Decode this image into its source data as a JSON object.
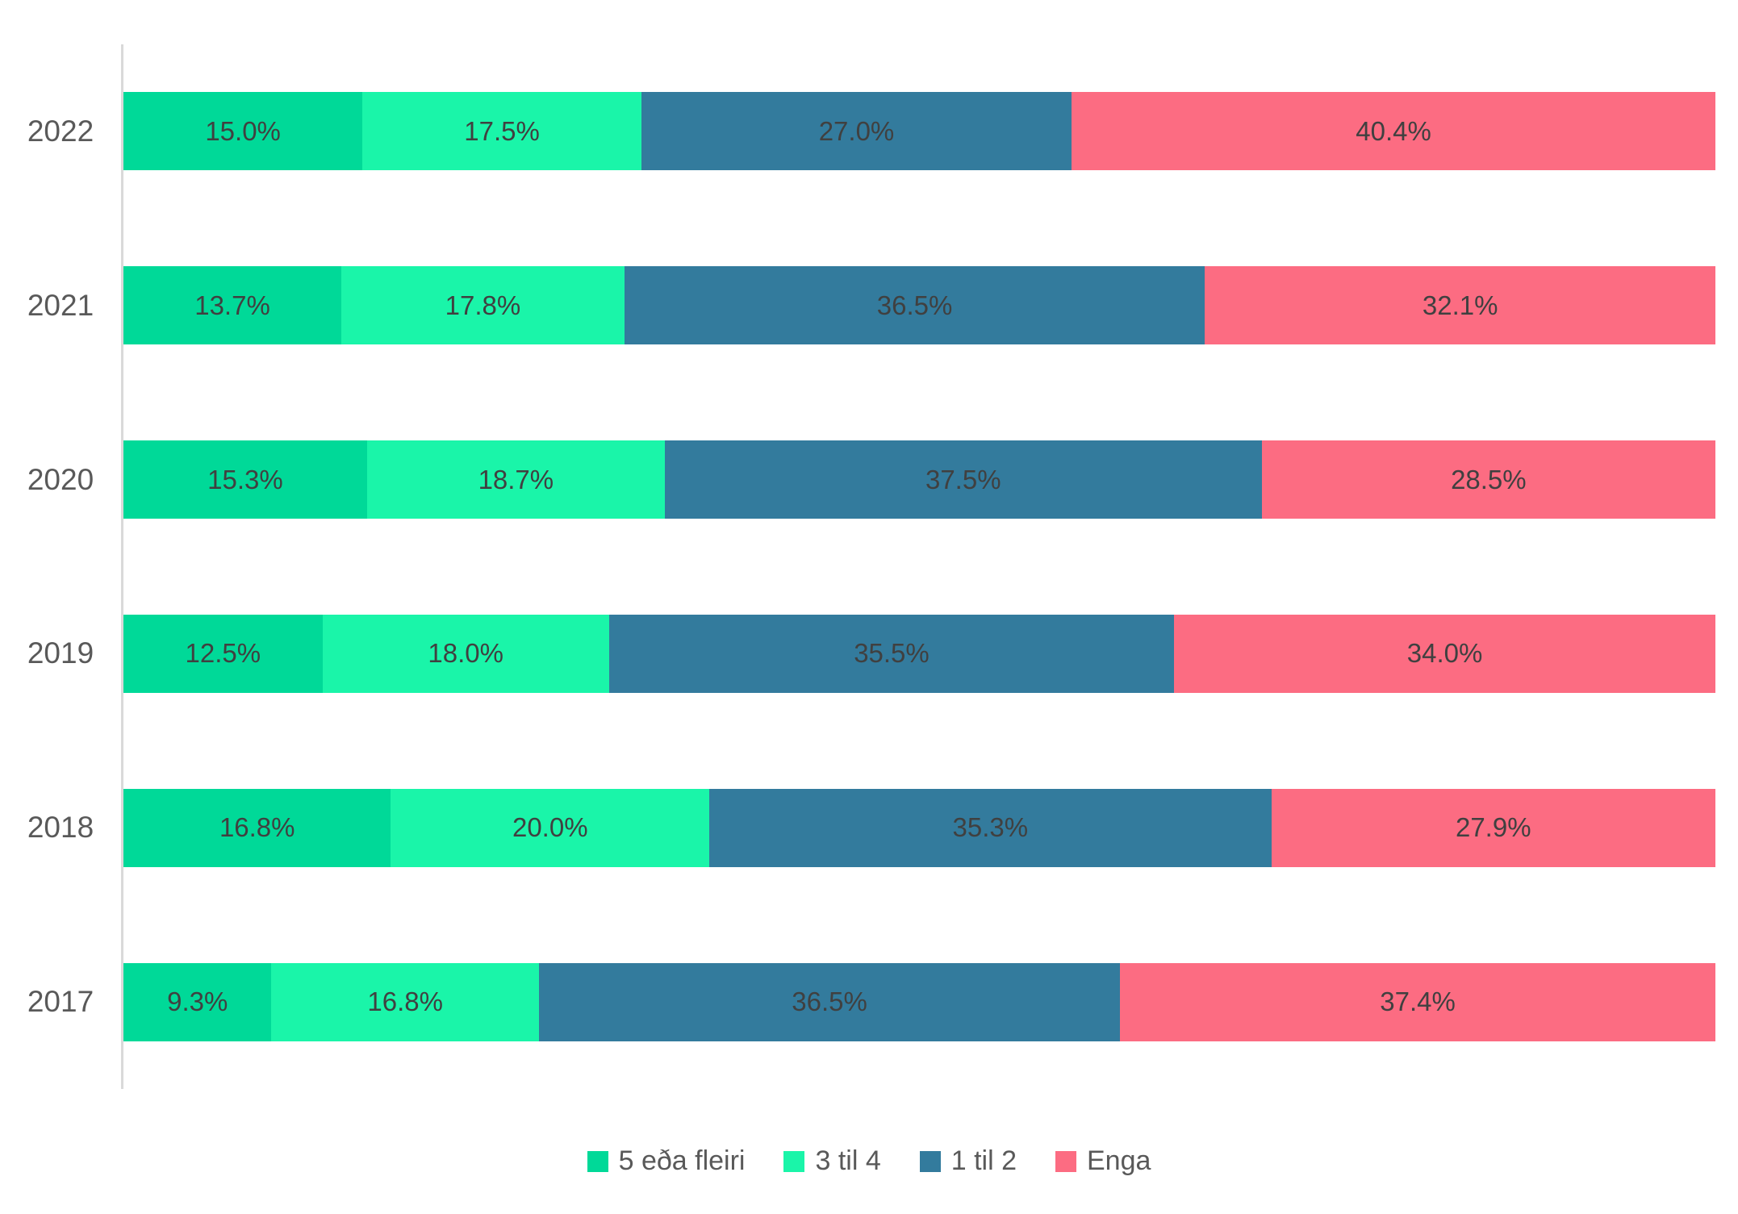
{
  "chart_data": {
    "type": "bar",
    "orientation": "horizontal",
    "stacked": true,
    "percent_stacked": true,
    "title": "",
    "xlabel": "",
    "ylabel": "",
    "xlim": [
      0,
      100
    ],
    "grid": false,
    "legend_position": "bottom",
    "value_suffix": "%",
    "value_decimals": 1,
    "categories": [
      "2022",
      "2021",
      "2020",
      "2019",
      "2018",
      "2017"
    ],
    "series": [
      {
        "name": "5 eða fleiri",
        "color": "#00d998",
        "values": [
          15.0,
          13.7,
          15.3,
          12.5,
          16.8,
          9.3
        ]
      },
      {
        "name": "3 til 4",
        "color": "#1af5a9",
        "values": [
          17.5,
          17.8,
          18.7,
          18.0,
          20.0,
          16.8
        ]
      },
      {
        "name": "1 til 2",
        "color": "#337b9d",
        "values": [
          27.0,
          36.5,
          37.5,
          35.5,
          35.3,
          36.5
        ]
      },
      {
        "name": "Enga",
        "color": "#fc6c82",
        "values": [
          40.4,
          32.1,
          28.5,
          34.0,
          27.9,
          37.4
        ]
      }
    ],
    "colors": {
      "axis_line": "#d9d9d9",
      "category_label_text": "#595959",
      "data_label_text": "#404040",
      "legend_text": "#595959",
      "background": "#ffffff"
    }
  }
}
